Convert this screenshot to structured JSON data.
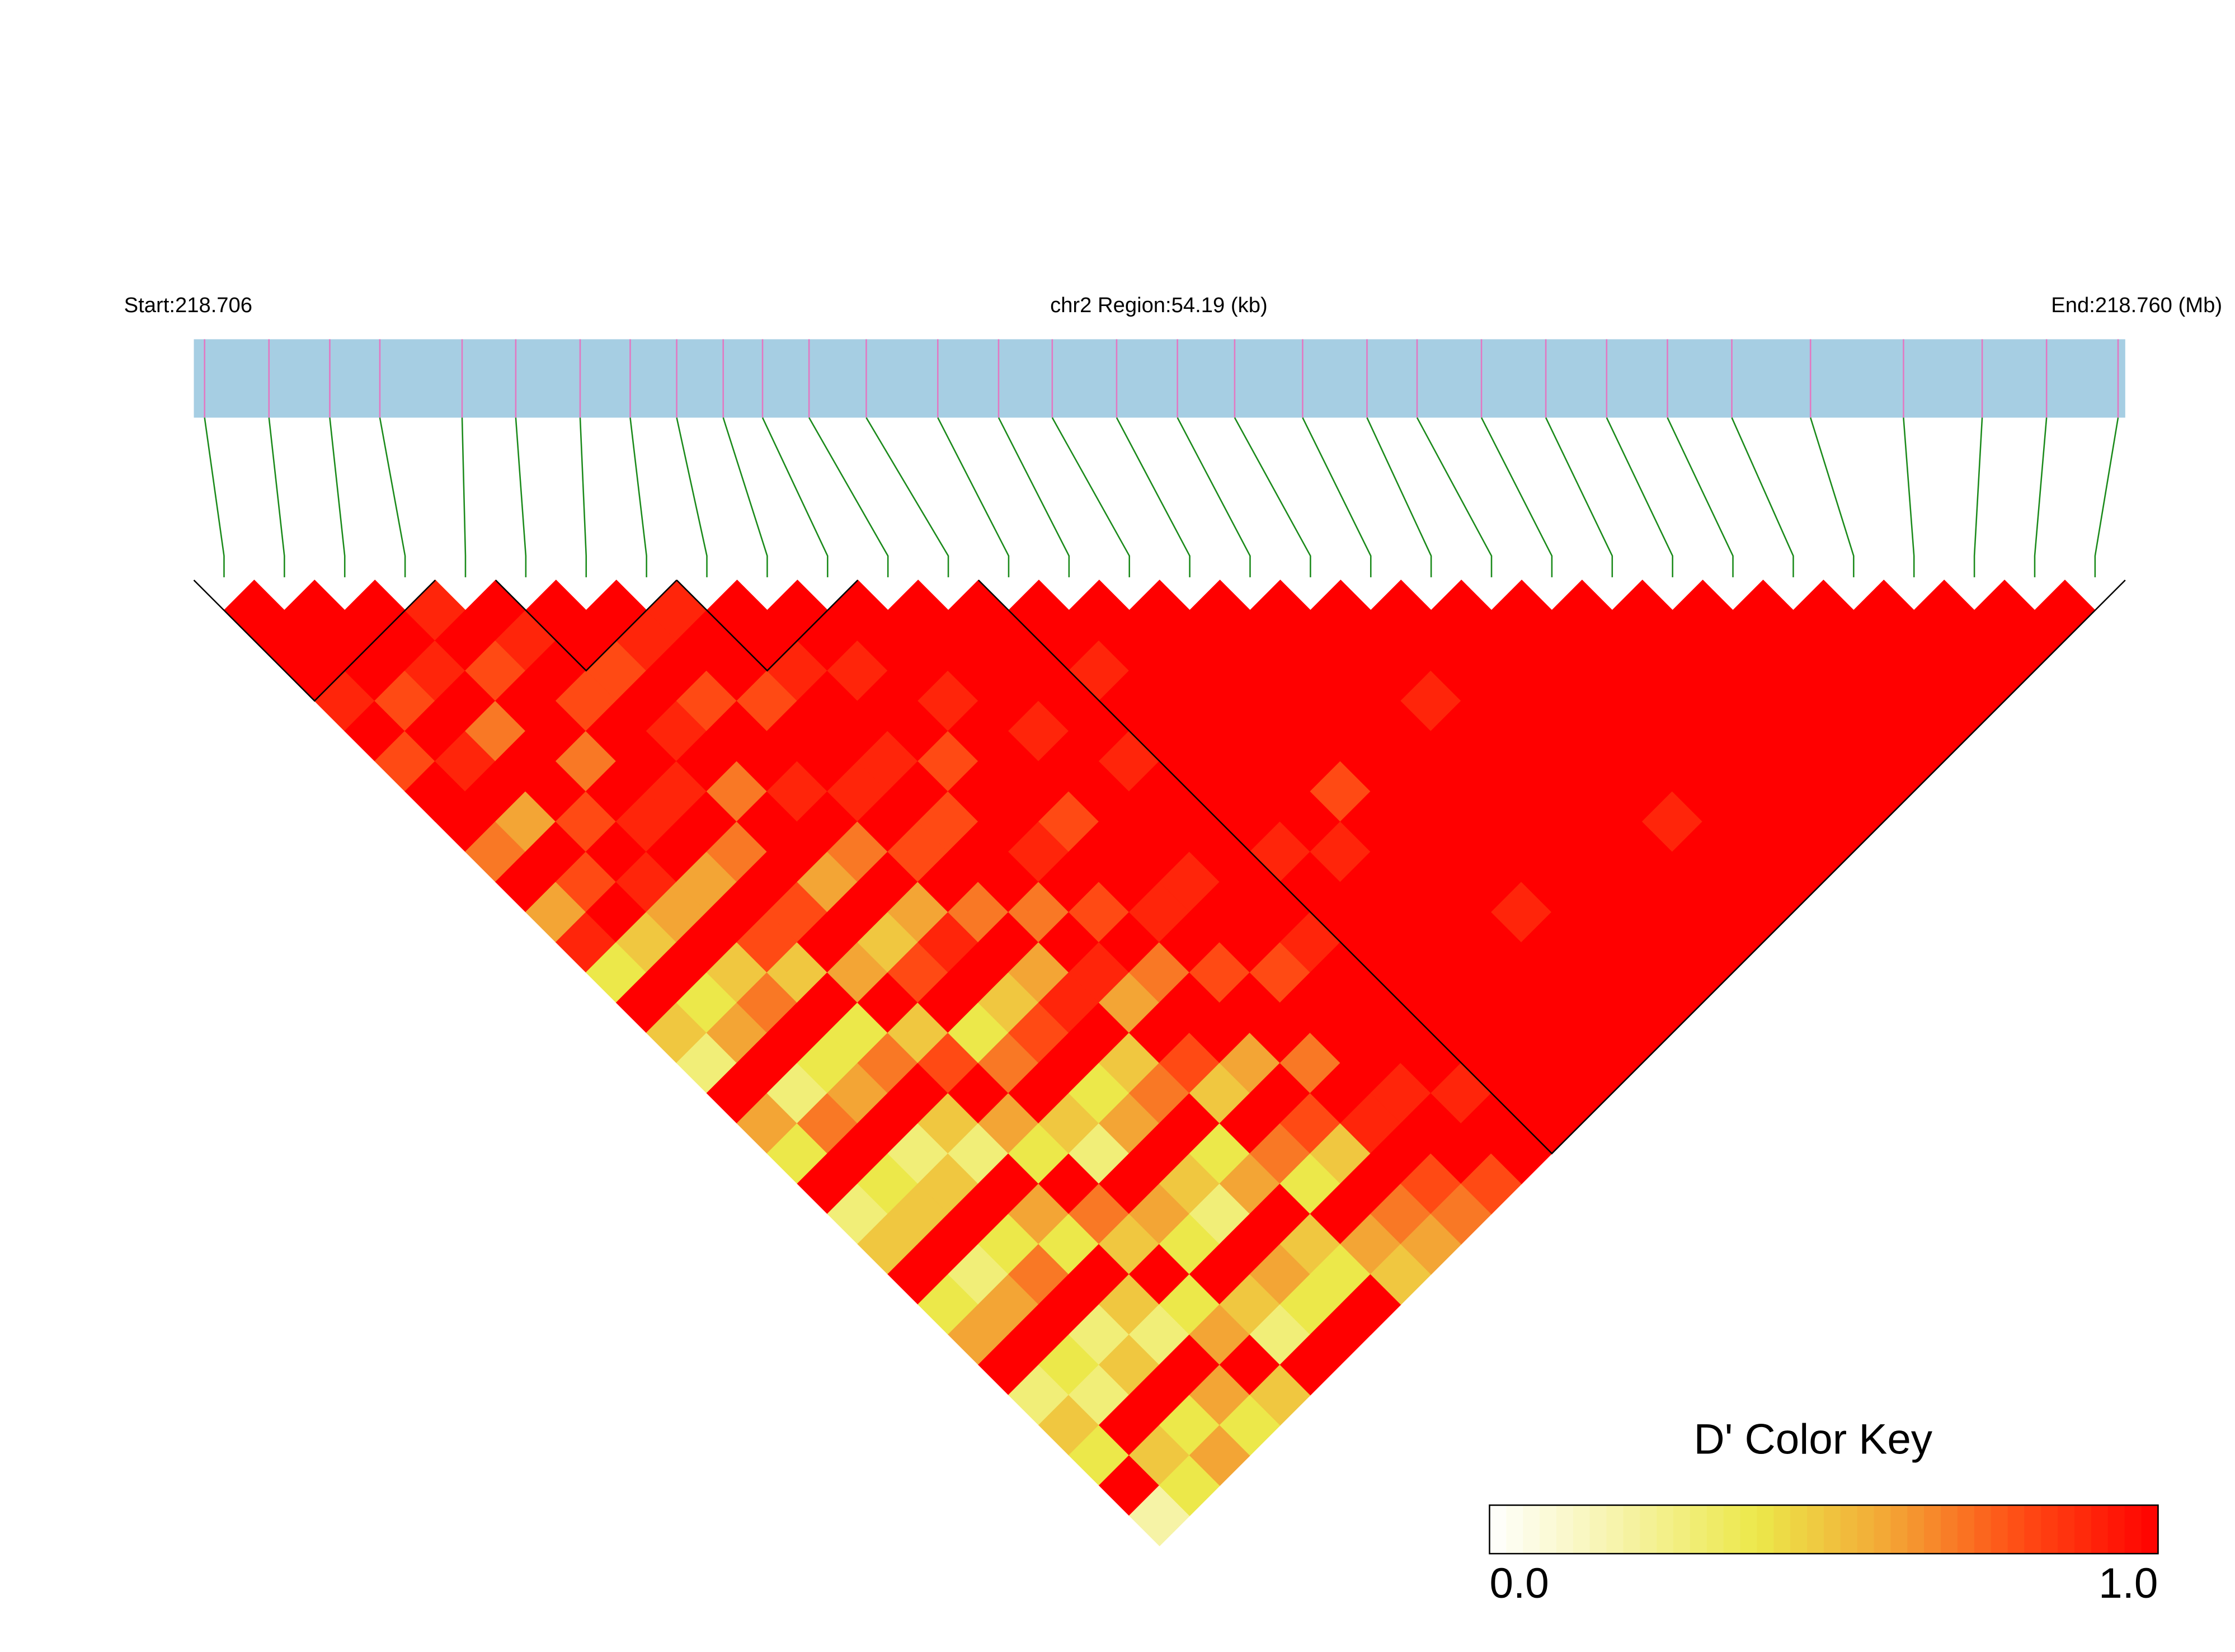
{
  "chart_data": {
    "type": "ld-heatmap",
    "start_label": "Start:218.706",
    "region_label": "chr2 Region:54.19 (kb)",
    "end_label": "End:218.760 (Mb)",
    "xlim": [
      218.706,
      218.76
    ],
    "snp_positions": [
      218.7063,
      218.7081,
      218.7098,
      218.7112,
      218.7135,
      218.715,
      218.7168,
      218.7182,
      218.7195,
      218.7208,
      218.7219,
      218.7232,
      218.7248,
      218.7268,
      218.7285,
      218.73,
      218.7318,
      218.7335,
      218.7351,
      218.737,
      218.7388,
      218.7402,
      218.742,
      218.7438,
      218.7455,
      218.7472,
      218.749,
      218.7512,
      218.7538,
      218.756,
      218.7578,
      218.7598
    ],
    "ld": [
      [
        1,
        1,
        1,
        0.9,
        1,
        0.8,
        1,
        1,
        0.7,
        1,
        0.6,
        0.9,
        0.4,
        1,
        0.5,
        0.3,
        1,
        0.6,
        0.4,
        1,
        0.3,
        0.5,
        1,
        0.4,
        0.6,
        1,
        0.3,
        0.5,
        0.4,
        1,
        0.2
      ],
      [
        1,
        1,
        1,
        0.8,
        1,
        0.9,
        1,
        0.6,
        1,
        0.8,
        1,
        0.5,
        1,
        0.4,
        0.6,
        1,
        0.3,
        0.7,
        1,
        0.4,
        0.5,
        1,
        0.3,
        0.6,
        1,
        0.4,
        0.3,
        1,
        0.5,
        0.4
      ],
      [
        1,
        1,
        0.9,
        1,
        0.7,
        1,
        1,
        0.8,
        1,
        0.9,
        0.6,
        1,
        0.5,
        0.7,
        1,
        0.4,
        0.6,
        1,
        0.3,
        0.5,
        1,
        0.4,
        0.7,
        1,
        0.3,
        0.5,
        1,
        0.4,
        0.6
      ],
      [
        0.9,
        1,
        0.8,
        1,
        1,
        0.7,
        1,
        0.9,
        1,
        0.6,
        1,
        0.8,
        0.5,
        1,
        0.4,
        0.7,
        1,
        0.5,
        0.3,
        1,
        0.6,
        0.4,
        1,
        0.5,
        0.3,
        1,
        0.6,
        0.4
      ],
      [
        1,
        0.9,
        1,
        0.8,
        1,
        1,
        0.9,
        1,
        0.7,
        1,
        0.8,
        1,
        0.6,
        1,
        0.5,
        0.8,
        1,
        0.6,
        0.4,
        1,
        0.7,
        0.5,
        1,
        0.4,
        0.6,
        1,
        0.5
      ],
      [
        1,
        1,
        0.8,
        1,
        0.9,
        1,
        0.7,
        1,
        1,
        0.6,
        1,
        0.5,
        0.8,
        1,
        0.4,
        0.7,
        1,
        0.5,
        0.3,
        1,
        0.6,
        0.4,
        1,
        0.5,
        0.3,
        1
      ],
      [
        1,
        0.9,
        1,
        0.8,
        1,
        1,
        0.9,
        1,
        0.7,
        1,
        0.6,
        0.9,
        1,
        0.5,
        0.8,
        1,
        0.4,
        0.6,
        1,
        0.5,
        0.3,
        1,
        0.6,
        0.4,
        1
      ],
      [
        0.9,
        1,
        1,
        0.8,
        1,
        1,
        0.9,
        1,
        0.8,
        1,
        0.7,
        1,
        0.6,
        0.9,
        1,
        0.5,
        0.7,
        1,
        0.4,
        0.6,
        1,
        0.5,
        0.4,
        1
      ],
      [
        1,
        1,
        0.9,
        1,
        1,
        0.9,
        1,
        0.8,
        1,
        1,
        0.7,
        1,
        0.9,
        0.6,
        1,
        0.8,
        0.5,
        1,
        0.7,
        0.4,
        1,
        0.6,
        0.5
      ],
      [
        1,
        1,
        0.9,
        1,
        1,
        0.8,
        1,
        1,
        0.9,
        1,
        0.8,
        1,
        0.7,
        1,
        1,
        0.6,
        1,
        0.8,
        0.5,
        1,
        0.7,
        0.6
      ],
      [
        1,
        1,
        1,
        0.9,
        1,
        1,
        1,
        0.8,
        1,
        1,
        0.9,
        1,
        0.8,
        1,
        1,
        0.7,
        1,
        0.9,
        1,
        0.8,
        0.7
      ],
      [
        1,
        1,
        1,
        1,
        0.9,
        1,
        1,
        1,
        1,
        0.9,
        1,
        1,
        0.8,
        1,
        1,
        1,
        0.9,
        1,
        1,
        0.8
      ],
      [
        1,
        1,
        1,
        1,
        1,
        0.9,
        1,
        1,
        1,
        1,
        1,
        0.9,
        1,
        1,
        1,
        1,
        0.9,
        1,
        1
      ],
      [
        1,
        1,
        0.9,
        1,
        1,
        1,
        1,
        1,
        0.9,
        1,
        1,
        1,
        1,
        1,
        1,
        1,
        1,
        1
      ],
      [
        1,
        1,
        1,
        1,
        1,
        1,
        1,
        1,
        0.9,
        1,
        1,
        1,
        1,
        1,
        1,
        1,
        1
      ],
      [
        1,
        1,
        1,
        1,
        1,
        1,
        0.8,
        1,
        1,
        1,
        1,
        1,
        1,
        1,
        1,
        1
      ],
      [
        1,
        1,
        1,
        1,
        1,
        1,
        1,
        1,
        1,
        1,
        0.9,
        1,
        1,
        1,
        1
      ],
      [
        1,
        1,
        1,
        1,
        1,
        1,
        1,
        1,
        1,
        1,
        1,
        1,
        1,
        1
      ],
      [
        1,
        1,
        1,
        0.9,
        1,
        1,
        1,
        1,
        1,
        1,
        1,
        1,
        1
      ],
      [
        1,
        1,
        1,
        1,
        1,
        1,
        1,
        1,
        1,
        1,
        1,
        1
      ],
      [
        1,
        1,
        1,
        1,
        1,
        1,
        1,
        0.9,
        1,
        1,
        1
      ],
      [
        1,
        1,
        1,
        1,
        1,
        1,
        1,
        1,
        1,
        1
      ],
      [
        1,
        1,
        1,
        1,
        1,
        1,
        1,
        1,
        1
      ],
      [
        1,
        1,
        1,
        1,
        1,
        1,
        1,
        1
      ],
      [
        1,
        1,
        1,
        1,
        1,
        1,
        1
      ],
      [
        1,
        1,
        1,
        1,
        1,
        1
      ],
      [
        1,
        1,
        1,
        1,
        1
      ],
      [
        1,
        1,
        1,
        1
      ],
      [
        1,
        1,
        1
      ],
      [
        1,
        1
      ],
      [
        1
      ]
    ],
    "blocks": [
      [
        0,
        3
      ],
      [
        5,
        7
      ],
      [
        8,
        10
      ],
      [
        13,
        31
      ]
    ],
    "color_key": {
      "title": "D' Color Key",
      "ticks": [
        {
          "value": 0,
          "label": "0.0"
        },
        {
          "value": 1,
          "label": "1.0"
        }
      ],
      "colors": [
        "#ffffff",
        "#f6f3a6",
        "#ece84a",
        "#f3a535",
        "#ff4a14",
        "#ff0000"
      ]
    }
  }
}
